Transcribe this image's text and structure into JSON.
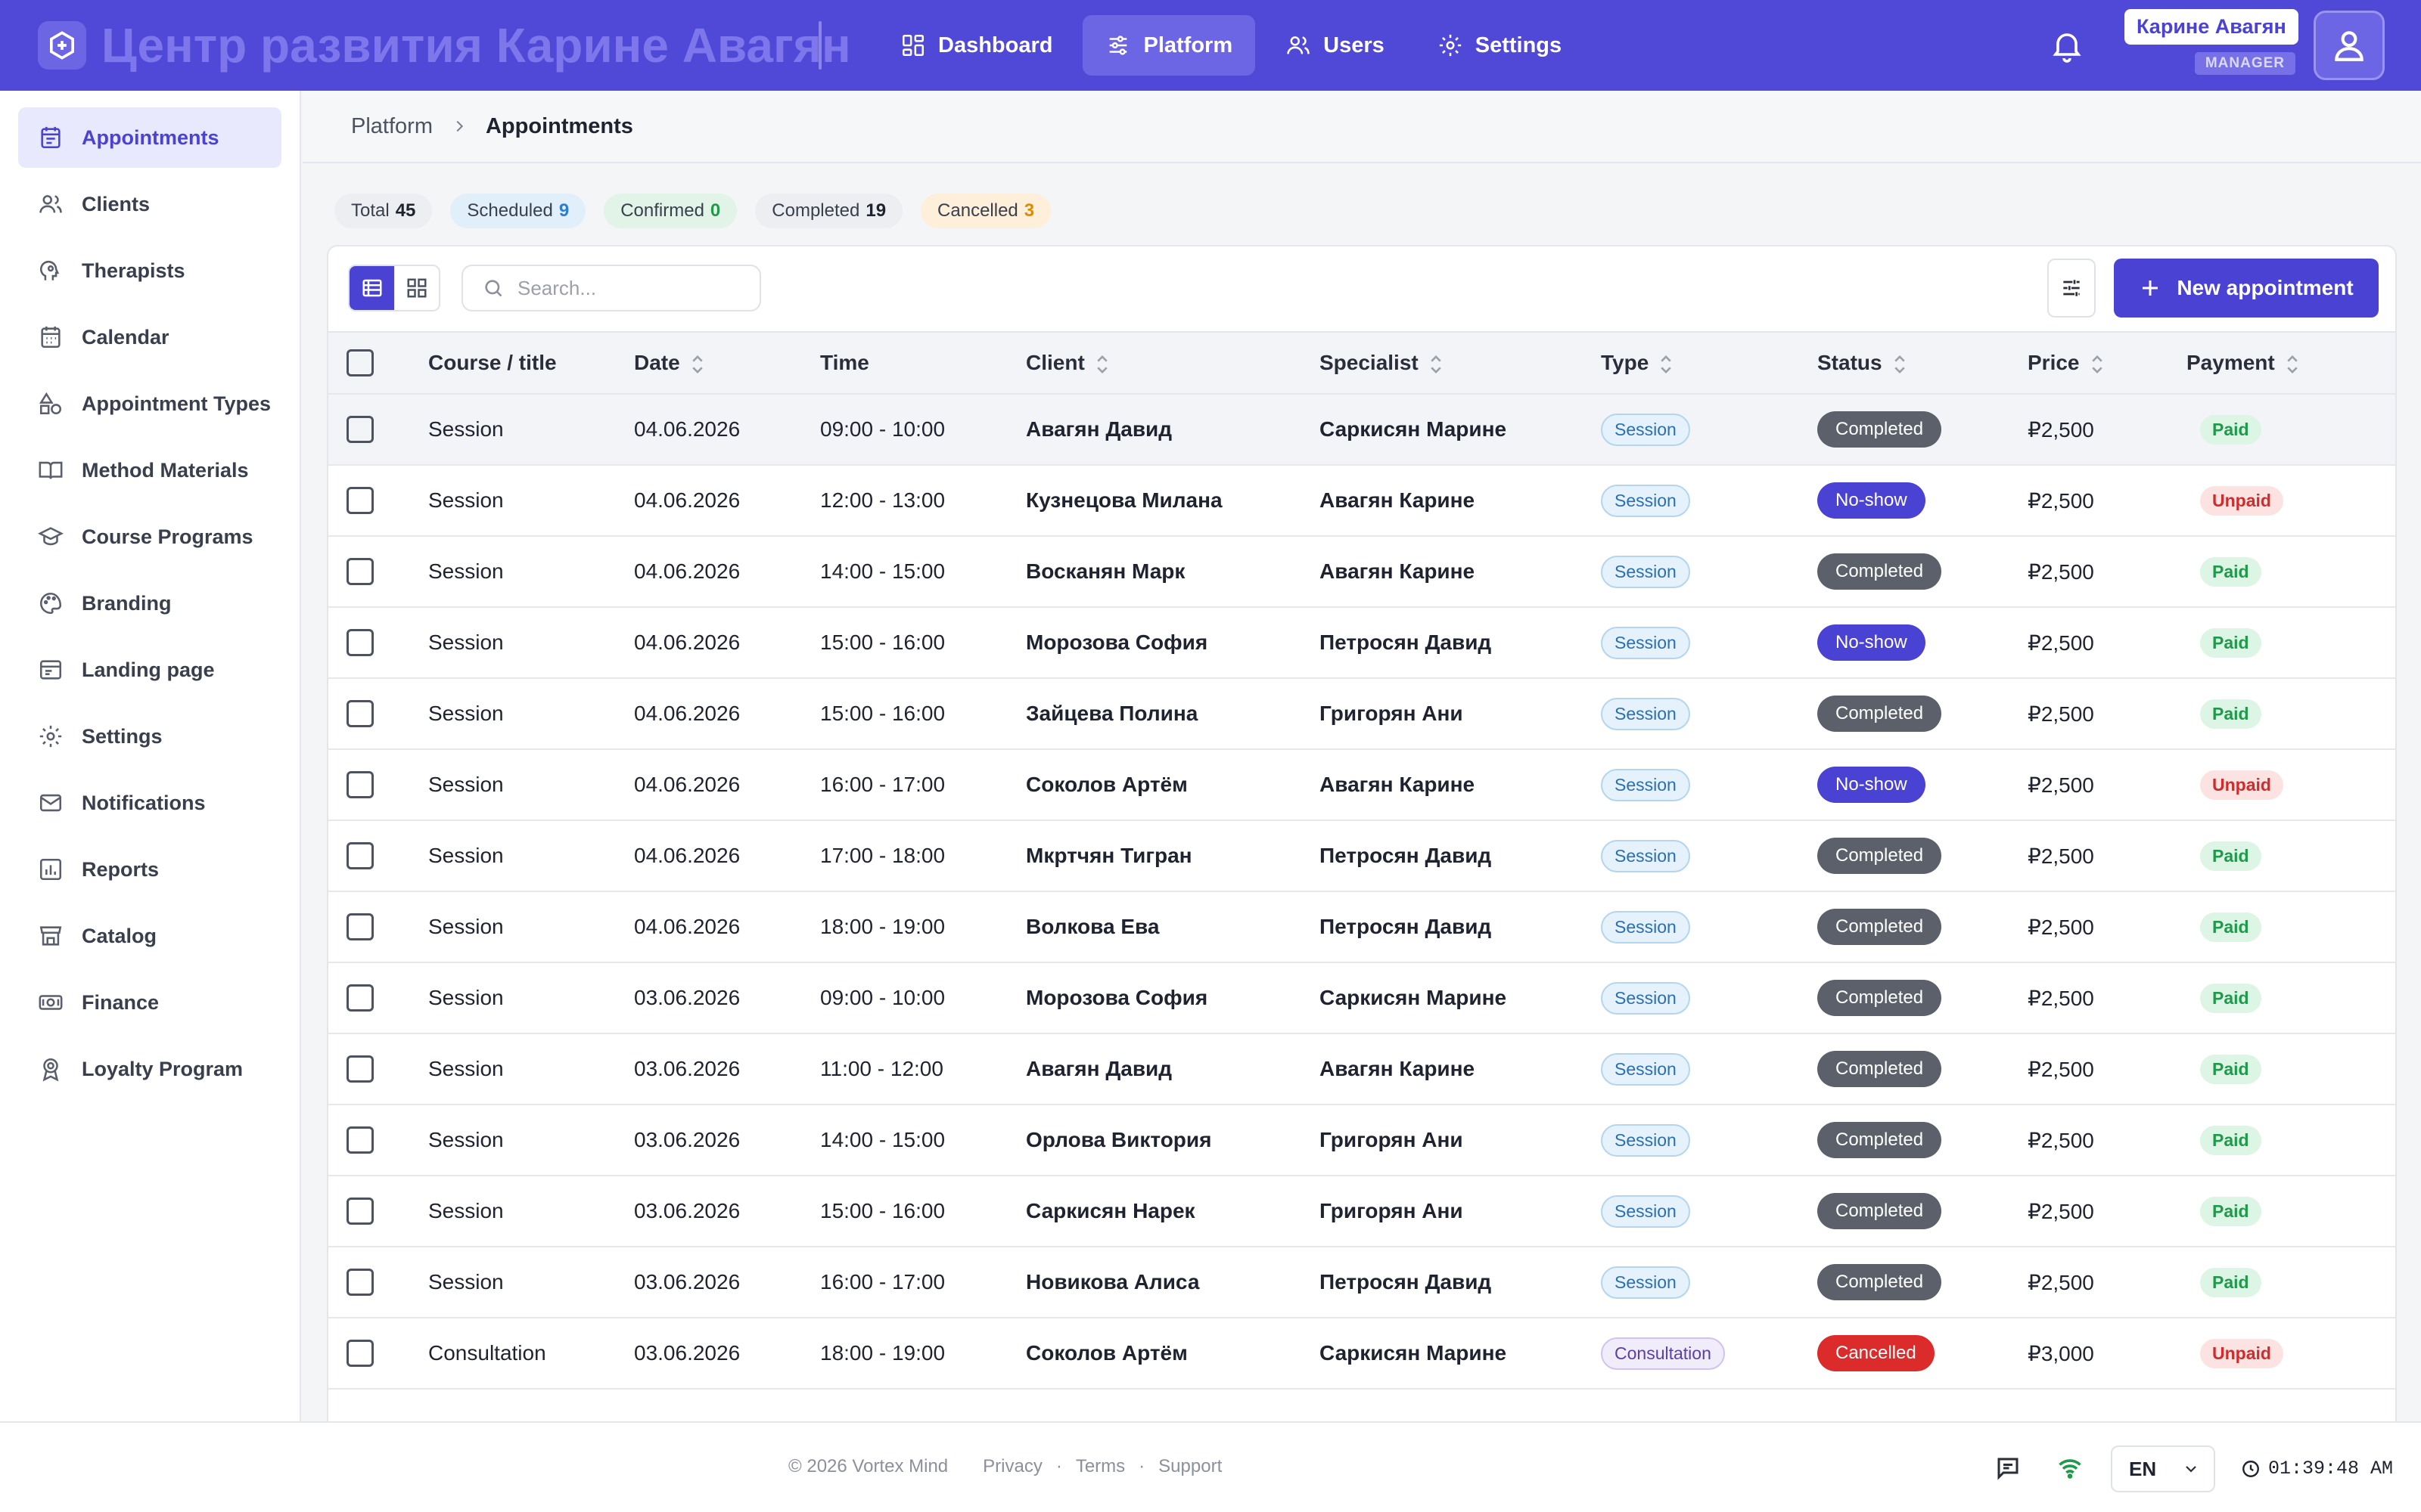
{
  "app": {
    "title": "Центр развития Карине Авагян"
  },
  "nav": [
    {
      "label": "Dashboard",
      "icon": "dashboard-icon",
      "active": false
    },
    {
      "label": "Platform",
      "icon": "sliders-icon",
      "active": true
    },
    {
      "label": "Users",
      "icon": "users-icon",
      "active": false
    },
    {
      "label": "Settings",
      "icon": "gear-icon",
      "active": false
    }
  ],
  "user": {
    "name": "Карине Авагян",
    "role": "MANAGER"
  },
  "sidebar": {
    "items": [
      {
        "label": "Appointments",
        "icon": "calendar-list-icon",
        "active": true
      },
      {
        "label": "Clients",
        "icon": "users-icon",
        "active": false
      },
      {
        "label": "Therapists",
        "icon": "head-icon",
        "active": false
      },
      {
        "label": "Calendar",
        "icon": "calendar-icon",
        "active": false
      },
      {
        "label": "Appointment Types",
        "icon": "shapes-icon",
        "active": false
      },
      {
        "label": "Method Materials",
        "icon": "book-icon",
        "active": false
      },
      {
        "label": "Course Programs",
        "icon": "graduation-cap-icon",
        "active": false
      },
      {
        "label": "Branding",
        "icon": "palette-icon",
        "active": false
      },
      {
        "label": "Landing page",
        "icon": "browser-icon",
        "active": false
      },
      {
        "label": "Settings",
        "icon": "gear-icon",
        "active": false
      },
      {
        "label": "Notifications",
        "icon": "mail-icon",
        "active": false
      },
      {
        "label": "Reports",
        "icon": "bar-chart-icon",
        "active": false
      },
      {
        "label": "Catalog",
        "icon": "store-icon",
        "active": false
      },
      {
        "label": "Finance",
        "icon": "money-icon",
        "active": false
      },
      {
        "label": "Loyalty Program",
        "icon": "award-icon",
        "active": false
      }
    ]
  },
  "breadcrumb": {
    "parent": "Platform",
    "current": "Appointments"
  },
  "stats": [
    {
      "label": "Total",
      "value": "45",
      "bg": "#eceef2",
      "color": "#1f2330"
    },
    {
      "label": "Scheduled",
      "value": "9",
      "bg": "#e1effb",
      "color": "#2a7fd0"
    },
    {
      "label": "Confirmed",
      "value": "0",
      "bg": "#e2f4e8",
      "color": "#1f9a4a"
    },
    {
      "label": "Completed",
      "value": "19",
      "bg": "#eceef2",
      "color": "#1f2330"
    },
    {
      "label": "Cancelled",
      "value": "3",
      "bg": "#fdefd9",
      "color": "#e08a00"
    }
  ],
  "toolbar": {
    "search_placeholder": "Search...",
    "new_label": "New appointment"
  },
  "table": {
    "columns": [
      "Course / title",
      "Date",
      "Time",
      "Client",
      "Specialist",
      "Type",
      "Status",
      "Price",
      "Payment"
    ],
    "rows": [
      {
        "title": "Session",
        "date": "04.06.2026",
        "time": "09:00 - 10:00",
        "client": "Авагян Давид",
        "specialist": "Саркисян Марине",
        "type": "Session",
        "status": "Completed",
        "price": "₽2,500",
        "payment": "Paid"
      },
      {
        "title": "Session",
        "date": "04.06.2026",
        "time": "12:00 - 13:00",
        "client": "Кузнецова Милана",
        "specialist": "Авагян Карине",
        "type": "Session",
        "status": "No-show",
        "price": "₽2,500",
        "payment": "Unpaid"
      },
      {
        "title": "Session",
        "date": "04.06.2026",
        "time": "14:00 - 15:00",
        "client": "Восканян Марк",
        "specialist": "Авагян Карине",
        "type": "Session",
        "status": "Completed",
        "price": "₽2,500",
        "payment": "Paid"
      },
      {
        "title": "Session",
        "date": "04.06.2026",
        "time": "15:00 - 16:00",
        "client": "Морозова София",
        "specialist": "Петросян Давид",
        "type": "Session",
        "status": "No-show",
        "price": "₽2,500",
        "payment": "Paid"
      },
      {
        "title": "Session",
        "date": "04.06.2026",
        "time": "15:00 - 16:00",
        "client": "Зайцева Полина",
        "specialist": "Григорян Ани",
        "type": "Session",
        "status": "Completed",
        "price": "₽2,500",
        "payment": "Paid"
      },
      {
        "title": "Session",
        "date": "04.06.2026",
        "time": "16:00 - 17:00",
        "client": "Соколов Артём",
        "specialist": "Авагян Карине",
        "type": "Session",
        "status": "No-show",
        "price": "₽2,500",
        "payment": "Unpaid"
      },
      {
        "title": "Session",
        "date": "04.06.2026",
        "time": "17:00 - 18:00",
        "client": "Мкртчян Тигран",
        "specialist": "Петросян Давид",
        "type": "Session",
        "status": "Completed",
        "price": "₽2,500",
        "payment": "Paid"
      },
      {
        "title": "Session",
        "date": "04.06.2026",
        "time": "18:00 - 19:00",
        "client": "Волкова Ева",
        "specialist": "Петросян Давид",
        "type": "Session",
        "status": "Completed",
        "price": "₽2,500",
        "payment": "Paid"
      },
      {
        "title": "Session",
        "date": "03.06.2026",
        "time": "09:00 - 10:00",
        "client": "Морозова София",
        "specialist": "Саркисян Марине",
        "type": "Session",
        "status": "Completed",
        "price": "₽2,500",
        "payment": "Paid"
      },
      {
        "title": "Session",
        "date": "03.06.2026",
        "time": "11:00 - 12:00",
        "client": "Авагян Давид",
        "specialist": "Авагян Карине",
        "type": "Session",
        "status": "Completed",
        "price": "₽2,500",
        "payment": "Paid"
      },
      {
        "title": "Session",
        "date": "03.06.2026",
        "time": "14:00 - 15:00",
        "client": "Орлова Виктория",
        "specialist": "Григорян Ани",
        "type": "Session",
        "status": "Completed",
        "price": "₽2,500",
        "payment": "Paid"
      },
      {
        "title": "Session",
        "date": "03.06.2026",
        "time": "15:00 - 16:00",
        "client": "Саркисян Нарек",
        "specialist": "Григорян Ани",
        "type": "Session",
        "status": "Completed",
        "price": "₽2,500",
        "payment": "Paid"
      },
      {
        "title": "Session",
        "date": "03.06.2026",
        "time": "16:00 - 17:00",
        "client": "Новикова Алиса",
        "specialist": "Петросян Давид",
        "type": "Session",
        "status": "Completed",
        "price": "₽2,500",
        "payment": "Paid"
      },
      {
        "title": "Consultation",
        "date": "03.06.2026",
        "time": "18:00 - 19:00",
        "client": "Соколов Артём",
        "specialist": "Саркисян Марине",
        "type": "Consultation",
        "status": "Cancelled",
        "price": "₽3,000",
        "payment": "Unpaid"
      }
    ]
  },
  "footer": {
    "copyright": "© 2026 Vortex Mind",
    "links": [
      "Privacy",
      "Terms",
      "Support"
    ],
    "language": "EN",
    "time": "01:39:48 AM"
  }
}
